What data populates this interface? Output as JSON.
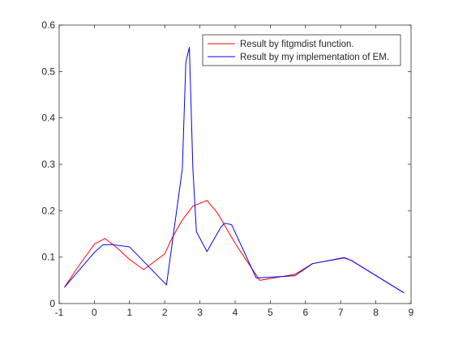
{
  "chart_data": {
    "type": "line",
    "title": "",
    "xlabel": "",
    "ylabel": "",
    "xlim": [
      -1,
      9
    ],
    "ylim": [
      0,
      0.6
    ],
    "xticks": [
      "-1",
      "0",
      "1",
      "2",
      "3",
      "4",
      "5",
      "6",
      "7",
      "8",
      "9"
    ],
    "yticks": [
      "0",
      "0.1",
      "0.2",
      "0.3",
      "0.4",
      "0.5",
      "0.6"
    ],
    "grid": false,
    "legend_position": "top-right",
    "series": [
      {
        "name": "Result by fitgmdist function.",
        "color": "#ff0000",
        "x": [
          -0.85,
          -0.5,
          0.0,
          0.3,
          0.6,
          1.0,
          1.4,
          2.0,
          2.2,
          2.5,
          2.8,
          3.0,
          3.2,
          3.5,
          4.0,
          4.7,
          5.7,
          6.2,
          7.1,
          7.3,
          8.8
        ],
        "y": [
          0.035,
          0.075,
          0.128,
          0.14,
          0.123,
          0.095,
          0.073,
          0.107,
          0.14,
          0.18,
          0.21,
          0.216,
          0.222,
          0.195,
          0.13,
          0.05,
          0.063,
          0.086,
          0.098,
          0.093,
          0.023
        ]
      },
      {
        "name": "Result by my implementation of EM.",
        "color": "#0000ff",
        "x": [
          -0.85,
          0.0,
          0.25,
          0.5,
          1.0,
          2.05,
          2.5,
          2.6,
          2.7,
          2.8,
          2.9,
          3.2,
          3.6,
          3.7,
          3.9,
          4.6,
          5.7,
          6.2,
          7.1,
          7.3,
          8.8
        ],
        "y": [
          0.035,
          0.11,
          0.127,
          0.127,
          0.122,
          0.04,
          0.29,
          0.52,
          0.552,
          0.29,
          0.155,
          0.112,
          0.165,
          0.173,
          0.17,
          0.055,
          0.06,
          0.086,
          0.099,
          0.093,
          0.023
        ]
      }
    ]
  }
}
